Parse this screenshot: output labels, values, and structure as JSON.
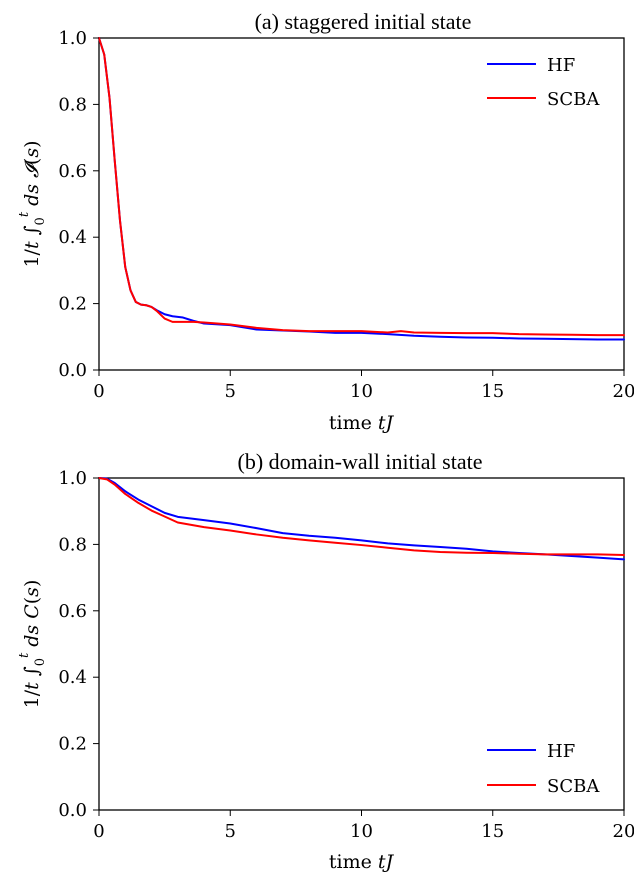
{
  "chart_data": [
    {
      "type": "line",
      "title": "(a) staggered initial state",
      "xlabel": "time tJ",
      "ylabel": "1/t ∫₀ᵗ ds 𝓘(s)",
      "xlim": [
        0,
        20
      ],
      "ylim": [
        0,
        1
      ],
      "xticks": [
        "0",
        "5",
        "10",
        "15",
        "20"
      ],
      "yticks": [
        "0.0",
        "0.2",
        "0.4",
        "0.6",
        "0.8",
        "1.0"
      ],
      "grid": false,
      "legend": "top-right",
      "series": [
        {
          "name": "HF",
          "color": "#0000ff",
          "x": [
            0,
            0.2,
            0.4,
            0.6,
            0.8,
            1.0,
            1.2,
            1.4,
            1.6,
            1.8,
            2.0,
            2.2,
            2.5,
            2.8,
            3.2,
            3.6,
            4,
            5,
            6,
            7,
            8,
            9,
            10,
            11,
            12,
            13,
            14,
            15,
            16,
            17,
            18,
            19,
            20
          ],
          "values": [
            1.0,
            0.95,
            0.82,
            0.63,
            0.45,
            0.31,
            0.24,
            0.205,
            0.197,
            0.195,
            0.19,
            0.18,
            0.168,
            0.162,
            0.158,
            0.148,
            0.14,
            0.135,
            0.122,
            0.119,
            0.116,
            0.112,
            0.112,
            0.108,
            0.103,
            0.1,
            0.098,
            0.097,
            0.095,
            0.094,
            0.093,
            0.092,
            0.092
          ]
        },
        {
          "name": "SCBA",
          "color": "#ff0000",
          "x": [
            0,
            0.2,
            0.4,
            0.6,
            0.8,
            1.0,
            1.2,
            1.4,
            1.6,
            1.8,
            2.0,
            2.2,
            2.5,
            2.8,
            3.2,
            3.6,
            4,
            5,
            6,
            7,
            8,
            9,
            10,
            11,
            11.5,
            12,
            13,
            14,
            15,
            16,
            17,
            18,
            19,
            20
          ],
          "values": [
            1.0,
            0.95,
            0.82,
            0.63,
            0.45,
            0.31,
            0.24,
            0.205,
            0.197,
            0.195,
            0.19,
            0.178,
            0.155,
            0.145,
            0.145,
            0.145,
            0.143,
            0.137,
            0.127,
            0.12,
            0.117,
            0.117,
            0.117,
            0.113,
            0.117,
            0.113,
            0.112,
            0.111,
            0.111,
            0.108,
            0.107,
            0.106,
            0.105,
            0.105
          ]
        }
      ]
    },
    {
      "type": "line",
      "title": "(b) domain-wall initial state",
      "xlabel": "time tJ",
      "ylabel": "1/t ∫₀ᵗ ds C(s)",
      "xlim": [
        0,
        20
      ],
      "ylim": [
        0,
        1
      ],
      "xticks": [
        "0",
        "5",
        "10",
        "15",
        "20"
      ],
      "yticks": [
        "0.0",
        "0.2",
        "0.4",
        "0.6",
        "0.8",
        "1.0"
      ],
      "grid": false,
      "legend": "bottom-right",
      "series": [
        {
          "name": "HF",
          "color": "#0000ff",
          "x": [
            0,
            0.3,
            0.6,
            1,
            1.5,
            2,
            2.5,
            3,
            4,
            5,
            6,
            7,
            8,
            9,
            10,
            11,
            12,
            13,
            14,
            15,
            16,
            17,
            18,
            19,
            20
          ],
          "values": [
            1.0,
            0.998,
            0.985,
            0.96,
            0.935,
            0.915,
            0.895,
            0.883,
            0.873,
            0.863,
            0.849,
            0.834,
            0.826,
            0.82,
            0.812,
            0.803,
            0.797,
            0.792,
            0.787,
            0.779,
            0.774,
            0.77,
            0.765,
            0.76,
            0.755
          ]
        },
        {
          "name": "SCBA",
          "color": "#ff0000",
          "x": [
            0,
            0.3,
            0.6,
            1,
            1.5,
            2,
            2.5,
            3,
            4,
            5,
            6,
            7,
            8,
            9,
            10,
            11,
            12,
            13,
            14,
            15,
            16,
            17,
            18,
            19,
            20
          ],
          "values": [
            1.0,
            0.996,
            0.98,
            0.952,
            0.925,
            0.902,
            0.884,
            0.866,
            0.852,
            0.842,
            0.83,
            0.82,
            0.812,
            0.805,
            0.798,
            0.79,
            0.782,
            0.777,
            0.775,
            0.774,
            0.772,
            0.77,
            0.77,
            0.77,
            0.768
          ]
        }
      ]
    }
  ]
}
